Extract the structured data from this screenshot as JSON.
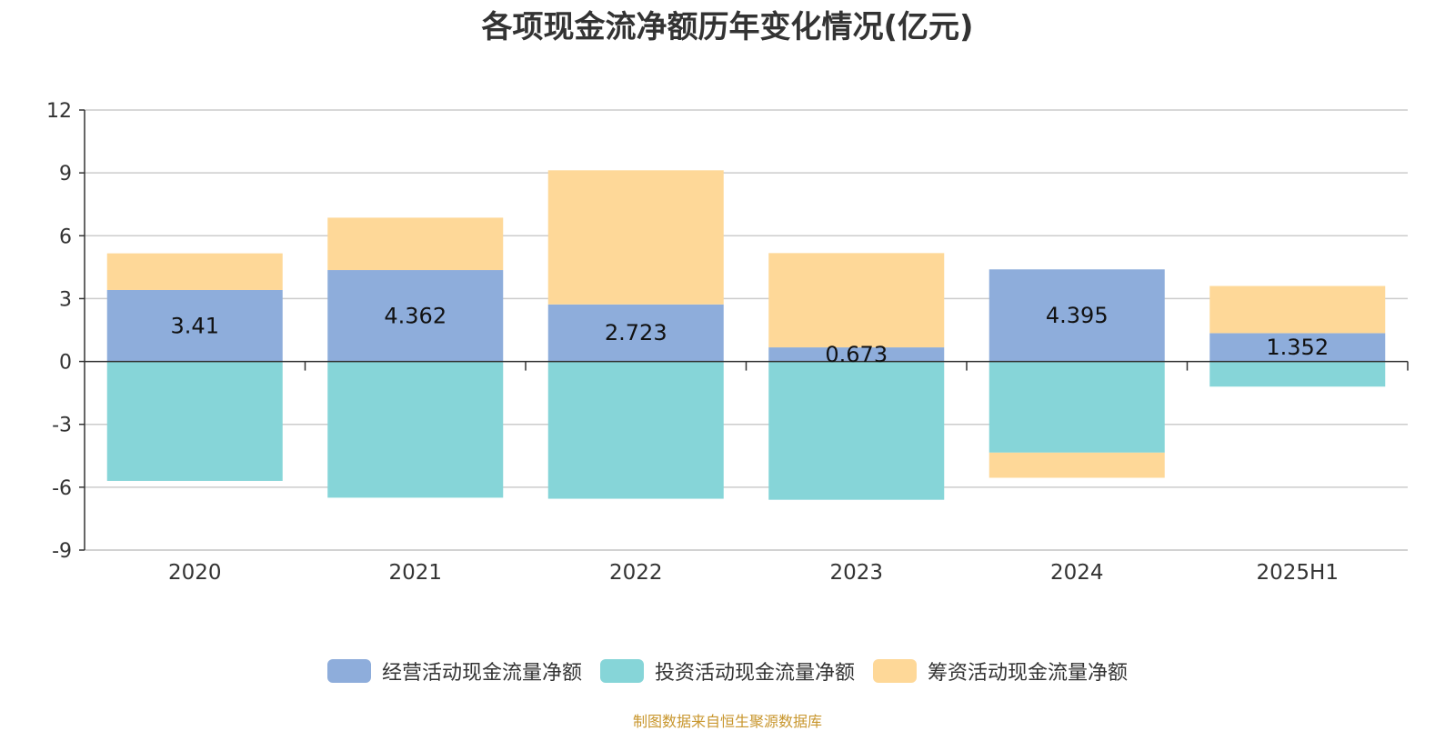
{
  "colors": {
    "operating": "#8eaddb",
    "investing": "#86d5d8",
    "financing": "#fed898",
    "source": "#c8962d"
  },
  "chart_data": {
    "type": "bar",
    "stacked": true,
    "title": "各项现金流净额历年变化情况(亿元)",
    "categories": [
      "2020",
      "2021",
      "2022",
      "2023",
      "2024",
      "2025H1"
    ],
    "ylim": [
      -9,
      12
    ],
    "yticks": [
      -9,
      -6,
      -3,
      0,
      3,
      6,
      9,
      12
    ],
    "grid": true,
    "legend_position": "bottom",
    "series": [
      {
        "name": "经营活动现金流量净额",
        "key": "operating",
        "values": [
          3.41,
          4.362,
          2.723,
          0.673,
          4.395,
          1.352
        ],
        "labels": [
          "3.41",
          "4.362",
          "2.723",
          "0.673",
          "4.395",
          "1.352"
        ]
      },
      {
        "name": "投资活动现金流量净额",
        "key": "investing",
        "values": [
          -5.7,
          -6.5,
          -6.55,
          -6.6,
          -4.35,
          -1.2
        ]
      },
      {
        "name": "筹资活动现金流量净额",
        "key": "financing",
        "values": [
          1.75,
          2.5,
          6.4,
          4.5,
          -1.2,
          2.25
        ]
      }
    ]
  },
  "legend": {
    "items": [
      {
        "label": "经营活动现金流量净额"
      },
      {
        "label": "投资活动现金流量净额"
      },
      {
        "label": "筹资活动现金流量净额"
      }
    ]
  },
  "source": "制图数据来自恒生聚源数据库"
}
